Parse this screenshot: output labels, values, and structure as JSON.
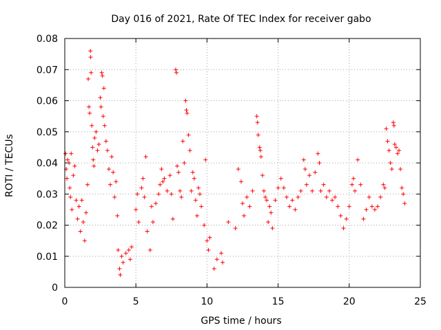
{
  "chart_data": {
    "type": "scatter",
    "title": "Day 016 of 2021, Rate Of TEC Index for receiver gabo",
    "xlabel": "GPS time / hours",
    "ylabel": "ROTI / TECUs",
    "xlim": [
      0,
      25
    ],
    "ylim": [
      0,
      0.08
    ],
    "x_ticks": [
      0,
      5,
      10,
      15,
      20,
      25
    ],
    "x_tick_labels": [
      "0",
      "5",
      "10",
      "15",
      "20",
      "25"
    ],
    "y_ticks": [
      0,
      0.01,
      0.02,
      0.03,
      0.04,
      0.05,
      0.06,
      0.07,
      0.08
    ],
    "y_tick_labels": [
      "0",
      "0.01",
      "0.02",
      "0.03",
      "0.04",
      "0.05",
      "0.06",
      "0.07",
      "0.08"
    ],
    "grid": true,
    "legend": "none",
    "marker": "+",
    "color": "#ff0000",
    "series": [
      {
        "points": [
          [
            0.05,
            0.043
          ],
          [
            0.1,
            0.038
          ],
          [
            0.15,
            0.035
          ],
          [
            0.2,
            0.041
          ],
          [
            0.3,
            0.04
          ],
          [
            0.35,
            0.032
          ],
          [
            0.4,
            0.029
          ],
          [
            0.45,
            0.043
          ],
          [
            0.5,
            0.025
          ],
          [
            0.6,
            0.036
          ],
          [
            0.7,
            0.039
          ],
          [
            0.8,
            0.028
          ],
          [
            0.9,
            0.022
          ],
          [
            1.0,
            0.026
          ],
          [
            1.1,
            0.018
          ],
          [
            1.2,
            0.028
          ],
          [
            1.3,
            0.021
          ],
          [
            1.4,
            0.015
          ],
          [
            1.5,
            0.024
          ],
          [
            1.6,
            0.033
          ],
          [
            1.65,
            0.067
          ],
          [
            1.7,
            0.058
          ],
          [
            1.75,
            0.056
          ],
          [
            1.8,
            0.076
          ],
          [
            1.82,
            0.074
          ],
          [
            1.85,
            0.069
          ],
          [
            1.9,
            0.052
          ],
          [
            1.95,
            0.045
          ],
          [
            2.0,
            0.041
          ],
          [
            2.05,
            0.039
          ],
          [
            2.1,
            0.048
          ],
          [
            2.2,
            0.05
          ],
          [
            2.3,
            0.044
          ],
          [
            2.4,
            0.046
          ],
          [
            2.5,
            0.061
          ],
          [
            2.55,
            0.058
          ],
          [
            2.6,
            0.069
          ],
          [
            2.65,
            0.068
          ],
          [
            2.7,
            0.055
          ],
          [
            2.75,
            0.064
          ],
          [
            2.8,
            0.052
          ],
          [
            2.9,
            0.047
          ],
          [
            3.0,
            0.044
          ],
          [
            3.1,
            0.038
          ],
          [
            3.2,
            0.033
          ],
          [
            3.3,
            0.042
          ],
          [
            3.4,
            0.037
          ],
          [
            3.5,
            0.029
          ],
          [
            3.6,
            0.034
          ],
          [
            3.7,
            0.023
          ],
          [
            3.75,
            0.012
          ],
          [
            3.85,
            0.006
          ],
          [
            3.9,
            0.004
          ],
          [
            4.0,
            0.01
          ],
          [
            4.1,
            0.008
          ],
          [
            4.3,
            0.011
          ],
          [
            4.5,
            0.012
          ],
          [
            4.6,
            0.009
          ],
          [
            4.7,
            0.013
          ],
          [
            5.0,
            0.025
          ],
          [
            5.1,
            0.03
          ],
          [
            5.2,
            0.021
          ],
          [
            5.4,
            0.032
          ],
          [
            5.5,
            0.035
          ],
          [
            5.6,
            0.029
          ],
          [
            5.7,
            0.042
          ],
          [
            5.8,
            0.018
          ],
          [
            6.0,
            0.012
          ],
          [
            6.1,
            0.026
          ],
          [
            6.2,
            0.021
          ],
          [
            6.4,
            0.027
          ],
          [
            6.6,
            0.03
          ],
          [
            6.7,
            0.033
          ],
          [
            6.8,
            0.038
          ],
          [
            6.9,
            0.034
          ],
          [
            7.0,
            0.035
          ],
          [
            7.2,
            0.031
          ],
          [
            7.4,
            0.036
          ],
          [
            7.5,
            0.03
          ],
          [
            7.6,
            0.022
          ],
          [
            7.8,
            0.07
          ],
          [
            7.85,
            0.069
          ],
          [
            7.9,
            0.039
          ],
          [
            8.0,
            0.037
          ],
          [
            8.1,
            0.031
          ],
          [
            8.2,
            0.029
          ],
          [
            8.3,
            0.047
          ],
          [
            8.4,
            0.04
          ],
          [
            8.5,
            0.06
          ],
          [
            8.55,
            0.057
          ],
          [
            8.6,
            0.056
          ],
          [
            8.7,
            0.049
          ],
          [
            8.8,
            0.044
          ],
          [
            8.9,
            0.031
          ],
          [
            9.0,
            0.037
          ],
          [
            9.1,
            0.035
          ],
          [
            9.2,
            0.028
          ],
          [
            9.3,
            0.023
          ],
          [
            9.4,
            0.032
          ],
          [
            9.5,
            0.03
          ],
          [
            9.6,
            0.026
          ],
          [
            9.8,
            0.02
          ],
          [
            9.9,
            0.041
          ],
          [
            10.0,
            0.015
          ],
          [
            10.1,
            0.012
          ],
          [
            10.2,
            0.016
          ],
          [
            10.5,
            0.006
          ],
          [
            10.7,
            0.009
          ],
          [
            11.0,
            0.011
          ],
          [
            11.1,
            0.008
          ],
          [
            11.5,
            0.021
          ],
          [
            12.0,
            0.019
          ],
          [
            12.2,
            0.038
          ],
          [
            12.4,
            0.034
          ],
          [
            12.5,
            0.027
          ],
          [
            12.6,
            0.023
          ],
          [
            12.8,
            0.029
          ],
          [
            13.0,
            0.026
          ],
          [
            13.2,
            0.031
          ],
          [
            13.5,
            0.055
          ],
          [
            13.55,
            0.053
          ],
          [
            13.6,
            0.049
          ],
          [
            13.7,
            0.045
          ],
          [
            13.75,
            0.044
          ],
          [
            13.8,
            0.042
          ],
          [
            13.9,
            0.036
          ],
          [
            14.0,
            0.031
          ],
          [
            14.1,
            0.029
          ],
          [
            14.2,
            0.028
          ],
          [
            14.3,
            0.021
          ],
          [
            14.4,
            0.026
          ],
          [
            14.5,
            0.024
          ],
          [
            14.6,
            0.019
          ],
          [
            14.8,
            0.028
          ],
          [
            15.0,
            0.032
          ],
          [
            15.2,
            0.035
          ],
          [
            15.4,
            0.032
          ],
          [
            15.6,
            0.029
          ],
          [
            15.8,
            0.026
          ],
          [
            16.0,
            0.028
          ],
          [
            16.2,
            0.025
          ],
          [
            16.4,
            0.029
          ],
          [
            16.6,
            0.031
          ],
          [
            16.8,
            0.041
          ],
          [
            16.9,
            0.038
          ],
          [
            17.0,
            0.033
          ],
          [
            17.2,
            0.036
          ],
          [
            17.4,
            0.031
          ],
          [
            17.6,
            0.037
          ],
          [
            17.8,
            0.043
          ],
          [
            17.9,
            0.04
          ],
          [
            18.0,
            0.031
          ],
          [
            18.2,
            0.033
          ],
          [
            18.4,
            0.029
          ],
          [
            18.6,
            0.031
          ],
          [
            18.8,
            0.028
          ],
          [
            19.0,
            0.029
          ],
          [
            19.2,
            0.026
          ],
          [
            19.4,
            0.023
          ],
          [
            19.6,
            0.019
          ],
          [
            19.8,
            0.022
          ],
          [
            20.0,
            0.026
          ],
          [
            20.2,
            0.033
          ],
          [
            20.3,
            0.035
          ],
          [
            20.4,
            0.031
          ],
          [
            20.6,
            0.041
          ],
          [
            20.8,
            0.033
          ],
          [
            21.0,
            0.022
          ],
          [
            21.2,
            0.025
          ],
          [
            21.4,
            0.029
          ],
          [
            21.6,
            0.026
          ],
          [
            21.8,
            0.025
          ],
          [
            22.0,
            0.026
          ],
          [
            22.2,
            0.029
          ],
          [
            22.4,
            0.033
          ],
          [
            22.5,
            0.032
          ],
          [
            22.6,
            0.051
          ],
          [
            22.7,
            0.047
          ],
          [
            22.8,
            0.044
          ],
          [
            22.9,
            0.04
          ],
          [
            23.0,
            0.038
          ],
          [
            23.1,
            0.053
          ],
          [
            23.15,
            0.052
          ],
          [
            23.2,
            0.046
          ],
          [
            23.3,
            0.045
          ],
          [
            23.4,
            0.043
          ],
          [
            23.5,
            0.044
          ],
          [
            23.6,
            0.038
          ],
          [
            23.7,
            0.032
          ],
          [
            23.8,
            0.03
          ],
          [
            23.9,
            0.027
          ]
        ]
      }
    ]
  }
}
